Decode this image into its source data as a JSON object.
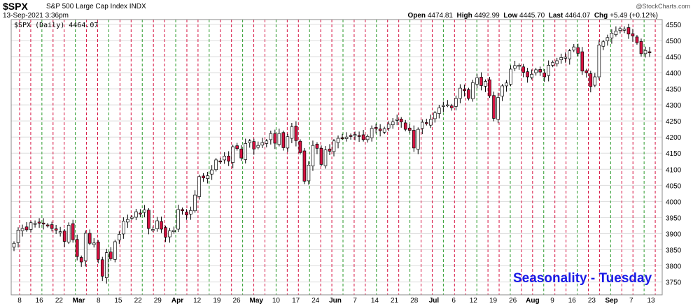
{
  "header": {
    "symbol": "$SPX",
    "description": "S&P 500 Large Cap Index INDX",
    "date": "13-Sep-2021 3:36pm",
    "open_label": "Open",
    "open": "4474.81",
    "high_label": "High",
    "high": "4492.99",
    "low_label": "Low",
    "low": "4445.70",
    "last_label": "Last",
    "last": "4464.07",
    "chg_label": "Chg",
    "chg": "+5.49 (+0.12%)",
    "brand": "@StockCharts.com"
  },
  "legend": "$SPX (Daily) 4464.07",
  "annotation": "Seasonality - Tuesday",
  "colors": {
    "up_fill": "#ffffff",
    "down_fill": "#d61040",
    "red_line": "#d61040",
    "green_line": "#2a9a2a",
    "grid": "#dddddd",
    "annotation": "#1a1ae6"
  },
  "chart_data": {
    "type": "candlestick",
    "title": "$SPX S&P 500 Large Cap Index INDX",
    "ylim": [
      3710,
      4565
    ],
    "y_ticks": [
      3750,
      3800,
      3850,
      3900,
      3950,
      4000,
      4050,
      4100,
      4150,
      4200,
      4250,
      4300,
      4350,
      4400,
      4450,
      4500,
      4550
    ],
    "x_labels": [
      {
        "label": "8",
        "month": false
      },
      {
        "label": "16",
        "month": false
      },
      {
        "label": "22",
        "month": false
      },
      {
        "label": "Mar",
        "month": true
      },
      {
        "label": "8",
        "month": false
      },
      {
        "label": "15",
        "month": false
      },
      {
        "label": "22",
        "month": false
      },
      {
        "label": "29",
        "month": false
      },
      {
        "label": "Apr",
        "month": true
      },
      {
        "label": "12",
        "month": false
      },
      {
        "label": "19",
        "month": false
      },
      {
        "label": "26",
        "month": false
      },
      {
        "label": "May",
        "month": true
      },
      {
        "label": "10",
        "month": false
      },
      {
        "label": "17",
        "month": false
      },
      {
        "label": "24",
        "month": false
      },
      {
        "label": "Jun",
        "month": true
      },
      {
        "label": "7",
        "month": false
      },
      {
        "label": "14",
        "month": false
      },
      {
        "label": "21",
        "month": false
      },
      {
        "label": "28",
        "month": false
      },
      {
        "label": "Jul",
        "month": true
      },
      {
        "label": "6",
        "month": false
      },
      {
        "label": "12",
        "month": false
      },
      {
        "label": "19",
        "month": false
      },
      {
        "label": "26",
        "month": false
      },
      {
        "label": "Aug",
        "month": true
      },
      {
        "label": "9",
        "month": false
      },
      {
        "label": "16",
        "month": false
      },
      {
        "label": "23",
        "month": false
      },
      {
        "label": "Sep",
        "month": true
      },
      {
        "label": "7",
        "month": false
      },
      {
        "label": "13",
        "month": false
      }
    ],
    "closes": [
      3870,
      3911,
      3916,
      3912,
      3934,
      3932,
      3933,
      3931,
      3925,
      3916,
      3911,
      3906,
      3876,
      3926,
      3881,
      3829,
      3812,
      3901,
      3870,
      3871,
      3820,
      3768,
      3841,
      3822,
      3875,
      3898,
      3939,
      3944,
      3951,
      3968,
      3963,
      3974,
      3916,
      3913,
      3940,
      3914,
      3889,
      3909,
      3910,
      3975,
      3971,
      3958,
      3972,
      4020,
      4077,
      4073,
      4080,
      4098,
      4129,
      4125,
      4141,
      4125,
      4170,
      4164,
      4135,
      4180,
      4188,
      4163,
      4174,
      4183,
      4188,
      4211,
      4181,
      4211,
      4167,
      4201,
      4232,
      4189,
      4152,
      4063,
      4113,
      4174,
      4165,
      4115,
      4160,
      4156,
      4188,
      4196,
      4197,
      4200,
      4204,
      4208,
      4203,
      4192,
      4202,
      4227,
      4226,
      4220,
      4226,
      4240,
      4247,
      4255,
      4247,
      4224,
      4221,
      4166,
      4224,
      4246,
      4242,
      4255,
      4275,
      4291,
      4298,
      4300,
      4291,
      4320,
      4352,
      4344,
      4320,
      4369,
      4384,
      4360,
      4373,
      4328,
      4258,
      4323,
      4359,
      4368,
      4411,
      4422,
      4423,
      4401,
      4387,
      4395,
      4409,
      4402,
      4387,
      4423,
      4432,
      4437,
      4447,
      4448,
      4468,
      4480,
      4460,
      4405,
      4400,
      4357,
      4387,
      4486,
      4496,
      4509,
      4523,
      4529,
      4537,
      4535,
      4520,
      4514,
      4493,
      4459,
      4469,
      4464
    ]
  }
}
